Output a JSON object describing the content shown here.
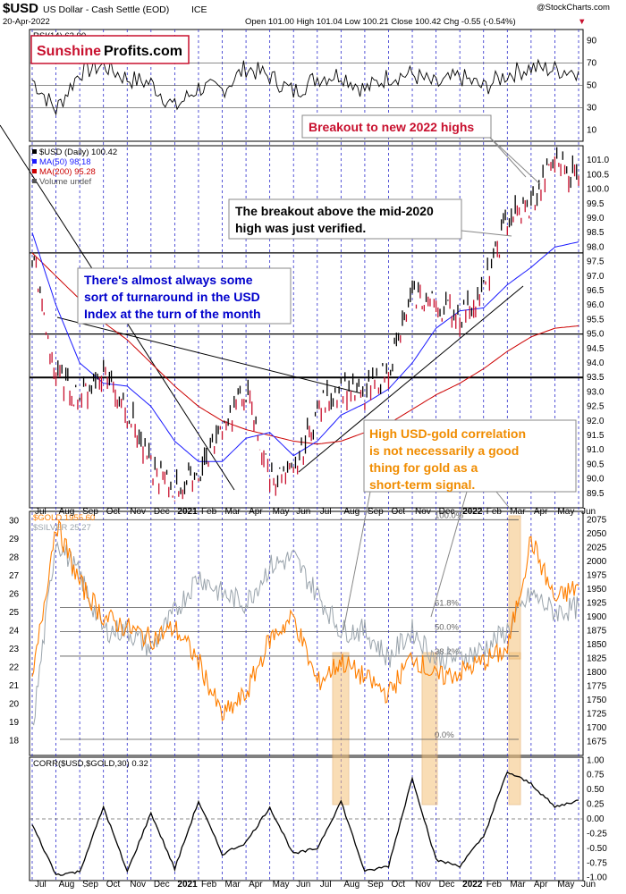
{
  "header": {
    "symbol": "$USD",
    "name": "US Dollar - Cash Settle (EOD)",
    "exchange": "ICE",
    "date": "20-Apr-2022",
    "ohlc": "Open 101.00  High 101.04  Low 100.21  Close 100.42  Chg -0.55 (-0.54%)",
    "ohlc_marker": "▼",
    "watermark": "@StockCharts.com"
  },
  "logo": {
    "part1": "Sunshine",
    "part2": "Profits.com"
  },
  "colors": {
    "price": "#000000",
    "ma50": "#1a1aff",
    "ma200": "#cc0000",
    "gold": "#ff7f00",
    "silver": "#9aa4ac",
    "annotation_red": "#c8102e",
    "annotation_blue": "#0000cc",
    "annotation_orange": "#f08c00",
    "highlight": "#f5c27a",
    "month_line": "#2b2bcc"
  },
  "chart_data": [
    {
      "type": "line",
      "title": "RSI(14) 62.90",
      "legend": "RSI(14) 62.90",
      "ylim": [
        0,
        100
      ],
      "yticks": [
        10,
        30,
        50,
        70,
        90
      ],
      "levels": [
        30,
        50,
        70
      ],
      "x": [
        "Jul",
        "Aug",
        "Sep",
        "Oct",
        "Nov",
        "Dec",
        "2021",
        "Feb",
        "Mar",
        "Apr",
        "May",
        "Jun",
        "Jul",
        "Aug",
        "Sep",
        "Oct",
        "Nov",
        "Dec",
        "2022",
        "Feb",
        "Mar",
        "Apr",
        "May",
        "Jun"
      ],
      "values": [
        55,
        28,
        62,
        68,
        56,
        52,
        30,
        48,
        46,
        66,
        58,
        44,
        57,
        60,
        46,
        58,
        60,
        50,
        58,
        48,
        60,
        66,
        64,
        62.9
      ]
    },
    {
      "type": "line",
      "title": "$USD (Daily) 100.42",
      "series": [
        {
          "name": "$USD (Daily) 100.42",
          "values": [
            97.7,
            93.5,
            92.8,
            93.7,
            92.4,
            90.4,
            89.6,
            90.2,
            91.8,
            93.0,
            90.0,
            90.1,
            92.4,
            93.2,
            92.8,
            93.8,
            96.3,
            96.0,
            95.6,
            96.5,
            99.0,
            99.4,
            101.0,
            100.42
          ]
        },
        {
          "name": "MA(50) 98.18",
          "values": [
            98.5,
            96.0,
            94.0,
            93.3,
            93.2,
            92.5,
            91.3,
            90.6,
            90.6,
            91.4,
            91.6,
            90.8,
            91.3,
            92.2,
            92.6,
            93.1,
            94.0,
            95.2,
            95.8,
            95.9,
            96.7,
            97.3,
            98.0,
            98.18
          ]
        },
        {
          "name": "MA(200) 95.28",
          "values": [
            97.8,
            97.0,
            96.2,
            95.4,
            94.8,
            94.0,
            93.2,
            92.5,
            92.0,
            91.7,
            91.5,
            91.3,
            91.2,
            91.3,
            91.6,
            91.9,
            92.4,
            92.9,
            93.3,
            93.8,
            94.4,
            94.9,
            95.2,
            95.28
          ]
        }
      ],
      "extra_legend": "Volume undef",
      "ylim": [
        89.0,
        101.5
      ],
      "yticks": [
        "89.5",
        "90.0",
        "90.5",
        "91.0",
        "91.5",
        "92.0",
        "92.5",
        "93.0",
        "93.5",
        "94.0",
        "94.5",
        "95.0",
        "95.5",
        "96.0",
        "96.5",
        "97.0",
        "97.5",
        "98.0",
        "98.5",
        "99.0",
        "99.5",
        "100.0",
        "100.5",
        "101.0"
      ],
      "horizontal_levels": [
        97.8,
        95.0,
        93.5
      ],
      "annotations": [
        "Breakout to new 2022 highs",
        "The breakout above the mid-2020 high was just verified.",
        "There's almost always some sort of turnaround in the USD Index at the turn of the month",
        "High USD-gold correlation is not necessarily a good thing for gold as a short-term signal."
      ]
    },
    {
      "type": "line",
      "title": "$GOLD 1955.60",
      "series": [
        {
          "name": "$GOLD 1955.60",
          "values": [
            1780,
            2070,
            1960,
            1900,
            1880,
            1860,
            1880,
            1820,
            1720,
            1760,
            1860,
            1900,
            1780,
            1820,
            1790,
            1760,
            1830,
            1790,
            1800,
            1820,
            1840,
            2040,
            1930,
            1955.6
          ]
        },
        {
          "name": "$SILVER 25.27",
          "values": [
            18.5,
            29,
            27,
            24,
            24,
            23,
            25,
            27,
            26,
            25.5,
            27.5,
            28,
            26,
            24,
            24,
            22.5,
            24,
            22.5,
            22.5,
            23,
            24,
            26,
            25,
            25.27
          ]
        }
      ],
      "y_right_lim": [
        1650,
        2090
      ],
      "y_right_ticks": [
        "1675",
        "1700",
        "1725",
        "1750",
        "1775",
        "1800",
        "1825",
        "1850",
        "1875",
        "1900",
        "1925",
        "1950",
        "1975",
        "2000",
        "2025",
        "2050",
        "2075"
      ],
      "y_left_lim": [
        17.2,
        30.5
      ],
      "y_left_ticks": [
        "18",
        "19",
        "20",
        "21",
        "22",
        "23",
        "24",
        "25",
        "26",
        "27",
        "28",
        "29",
        "30"
      ],
      "fib_levels": [
        "100.0%",
        "61.8%",
        "50.0%",
        "38.2%",
        "0.0%"
      ],
      "fib_values": [
        2075,
        1917,
        1873,
        1829,
        1679
      ]
    },
    {
      "type": "line",
      "title": "CORR($USD,$GOLD,30) 0.32",
      "ylim": [
        -1.05,
        1.05
      ],
      "yticks": [
        "-1.00",
        "-0.75",
        "-0.50",
        "-0.25",
        "0.00",
        "0.25",
        "0.50",
        "0.75",
        "1.00"
      ],
      "values": [
        -0.1,
        -0.95,
        -0.9,
        0.2,
        -0.9,
        0.1,
        -0.85,
        0.3,
        -0.6,
        -0.4,
        0.2,
        -0.6,
        -0.5,
        0.3,
        -0.9,
        -0.8,
        0.7,
        -0.7,
        -0.8,
        -0.3,
        0.8,
        0.6,
        0.2,
        0.32
      ],
      "highlight_periods": [
        "Aug",
        "Dec",
        "Mar"
      ]
    }
  ],
  "x_axis_labels": [
    "Jul",
    "Aug",
    "Sep",
    "Oct",
    "Nov",
    "Dec",
    "2021",
    "Feb",
    "Mar",
    "Apr",
    "May",
    "Jun",
    "Jul",
    "Aug",
    "Sep",
    "Oct",
    "Nov",
    "Dec",
    "2022",
    "Feb",
    "Mar",
    "Apr",
    "May",
    "Jun"
  ]
}
